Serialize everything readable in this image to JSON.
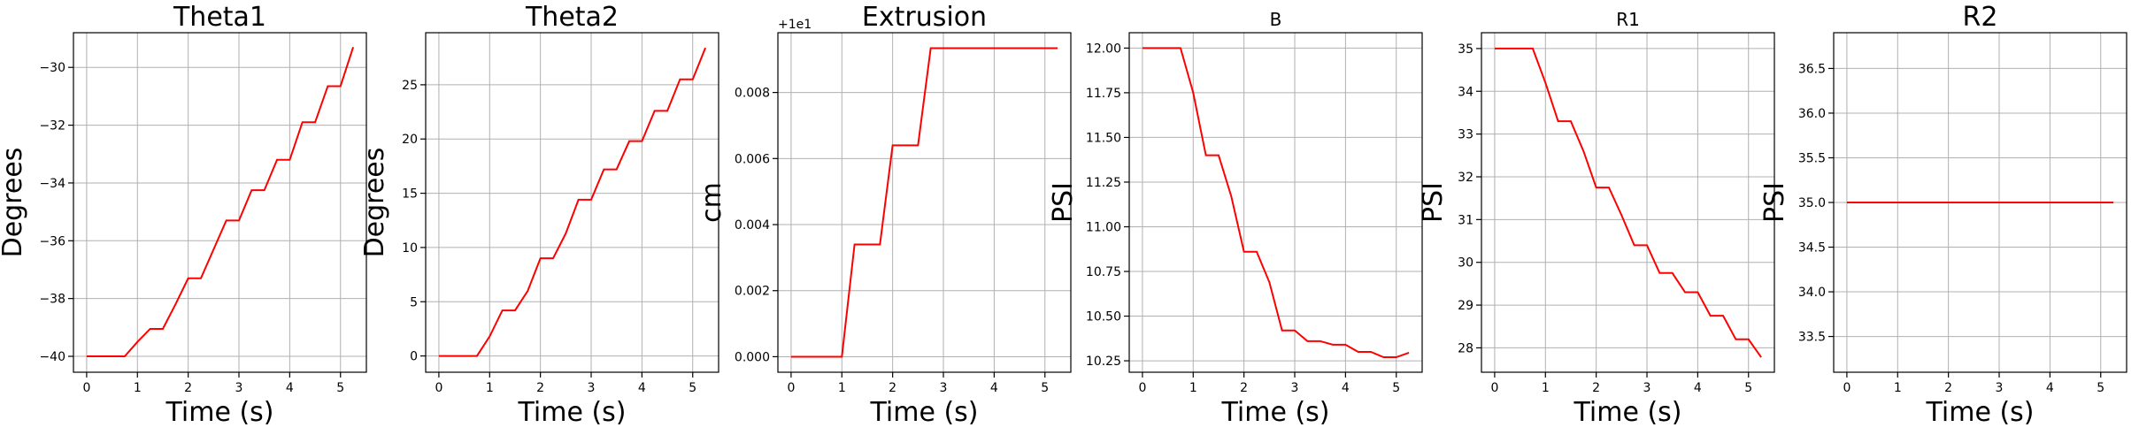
{
  "colors": {
    "line": "#ff0000",
    "grid": "#b0b0b0",
    "frame": "#000000",
    "background": "#ffffff"
  },
  "chart_data": [
    {
      "type": "line",
      "title": "Theta1",
      "xlabel": "Time (s)",
      "ylabel": "Degrees",
      "xlim": [
        -0.26,
        5.51
      ],
      "ylim": [
        -40.55,
        -28.8
      ],
      "xticks": [
        0,
        1,
        2,
        3,
        4,
        5
      ],
      "xtick_labels": [
        "0",
        "1",
        "2",
        "3",
        "4",
        "5"
      ],
      "yticks": [
        -40,
        -38,
        -36,
        -34,
        -32,
        -30
      ],
      "ytick_labels": [
        "−40",
        "−38",
        "−36",
        "−34",
        "−32",
        "−30"
      ],
      "grid": true,
      "x": [
        0,
        0.25,
        0.5,
        0.75,
        1.0,
        1.25,
        1.5,
        1.75,
        2.0,
        2.25,
        2.5,
        2.75,
        3.0,
        3.25,
        3.5,
        3.75,
        4.0,
        4.25,
        4.5,
        4.75,
        5.0,
        5.25
      ],
      "y": [
        -40,
        -40,
        -40,
        -40,
        -39.5,
        -39.05,
        -39.05,
        -38.2,
        -37.3,
        -37.3,
        -36.3,
        -35.3,
        -35.3,
        -34.25,
        -34.25,
        -33.2,
        -33.2,
        -31.9,
        -31.9,
        -30.65,
        -30.65,
        -29.3
      ]
    },
    {
      "type": "line",
      "title": "Theta2",
      "xlabel": "Time (s)",
      "ylabel": "Degrees",
      "xlim": [
        -0.26,
        5.51
      ],
      "ylim": [
        -1.5,
        29.8
      ],
      "xticks": [
        0,
        1,
        2,
        3,
        4,
        5
      ],
      "xtick_labels": [
        "0",
        "1",
        "2",
        "3",
        "4",
        "5"
      ],
      "yticks": [
        0,
        5,
        10,
        15,
        20,
        25
      ],
      "ytick_labels": [
        "0",
        "5",
        "10",
        "15",
        "20",
        "25"
      ],
      "grid": true,
      "x": [
        0,
        0.25,
        0.5,
        0.75,
        1.0,
        1.25,
        1.5,
        1.75,
        2.0,
        2.25,
        2.5,
        2.75,
        3.0,
        3.25,
        3.5,
        3.75,
        4.0,
        4.25,
        4.5,
        4.75,
        5.0,
        5.25
      ],
      "y": [
        0,
        0,
        0,
        0,
        1.8,
        4.2,
        4.2,
        6.0,
        9.0,
        9.0,
        11.3,
        14.4,
        14.4,
        17.2,
        17.2,
        19.8,
        19.8,
        22.6,
        22.6,
        25.5,
        25.5,
        28.4
      ]
    },
    {
      "type": "line",
      "title": "Extrusion",
      "xlabel": "Time (s)",
      "ylabel": "cm",
      "offset_text": "+1e1",
      "xlim": [
        -0.26,
        5.51
      ],
      "ylim": [
        -0.00047,
        0.00981
      ],
      "xticks": [
        0,
        1,
        2,
        3,
        4,
        5
      ],
      "xtick_labels": [
        "0",
        "1",
        "2",
        "3",
        "4",
        "5"
      ],
      "yticks": [
        0,
        0.002,
        0.004,
        0.006,
        0.008
      ],
      "ytick_labels": [
        "0.000",
        "0.002",
        "0.004",
        "0.006",
        "0.008"
      ],
      "grid": true,
      "x": [
        0,
        0.25,
        0.5,
        0.75,
        1.0,
        1.25,
        1.5,
        1.75,
        2.0,
        2.25,
        2.5,
        2.75,
        3.0,
        3.25,
        3.5,
        3.75,
        4.0,
        4.25,
        4.5,
        4.75,
        5.0,
        5.25
      ],
      "y": [
        0,
        0,
        0,
        0,
        0,
        0.0034,
        0.0034,
        0.0034,
        0.0064,
        0.0064,
        0.0064,
        0.00934,
        0.00934,
        0.00934,
        0.00934,
        0.00934,
        0.00934,
        0.00934,
        0.00934,
        0.00934,
        0.00934,
        0.00934
      ]
    },
    {
      "type": "line",
      "title": "B",
      "xlabel": "Time (s)",
      "ylabel": "PSI",
      "xlim": [
        -0.26,
        5.51
      ],
      "ylim": [
        10.186,
        12.086
      ],
      "xticks": [
        0,
        1,
        2,
        3,
        4,
        5
      ],
      "xtick_labels": [
        "0",
        "1",
        "2",
        "3",
        "4",
        "5"
      ],
      "yticks": [
        10.25,
        10.5,
        10.75,
        11.0,
        11.25,
        11.5,
        11.75,
        12.0
      ],
      "ytick_labels": [
        "10.25",
        "10.50",
        "10.75",
        "11.00",
        "11.25",
        "11.50",
        "11.75",
        "12.00"
      ],
      "grid": true,
      "x": [
        0,
        0.25,
        0.5,
        0.75,
        1.0,
        1.25,
        1.5,
        1.75,
        2.0,
        2.25,
        2.5,
        2.75,
        3.0,
        3.25,
        3.5,
        3.75,
        4.0,
        4.25,
        4.5,
        4.75,
        5.0,
        5.25
      ],
      "y": [
        12.0,
        12.0,
        12.0,
        12.0,
        11.75,
        11.4,
        11.4,
        11.17,
        10.86,
        10.86,
        10.69,
        10.42,
        10.42,
        10.36,
        10.36,
        10.34,
        10.34,
        10.3,
        10.3,
        10.27,
        10.27,
        10.295
      ]
    },
    {
      "type": "line",
      "title": "R1",
      "xlabel": "Time (s)",
      "ylabel": "PSI",
      "xlim": [
        -0.26,
        5.51
      ],
      "ylim": [
        27.43,
        35.37
      ],
      "xticks": [
        0,
        1,
        2,
        3,
        4,
        5
      ],
      "xtick_labels": [
        "0",
        "1",
        "2",
        "3",
        "4",
        "5"
      ],
      "yticks": [
        28,
        29,
        30,
        31,
        32,
        33,
        34,
        35
      ],
      "ytick_labels": [
        "28",
        "29",
        "30",
        "31",
        "32",
        "33",
        "34",
        "35"
      ],
      "grid": true,
      "x": [
        0,
        0.25,
        0.5,
        0.75,
        1.0,
        1.25,
        1.5,
        1.75,
        2.0,
        2.25,
        2.5,
        2.75,
        3.0,
        3.25,
        3.5,
        3.75,
        4.0,
        4.25,
        4.5,
        4.75,
        5.0,
        5.25
      ],
      "y": [
        35,
        35,
        35,
        35,
        34.2,
        33.3,
        33.3,
        32.6,
        31.75,
        31.75,
        31.1,
        30.4,
        30.4,
        29.75,
        29.75,
        29.3,
        29.3,
        28.75,
        28.75,
        28.2,
        28.2,
        27.78
      ]
    },
    {
      "type": "line",
      "title": "R2",
      "xlabel": "Time (s)",
      "ylabel": "PSI",
      "xlim": [
        -0.26,
        5.51
      ],
      "ylim": [
        33.1,
        36.9
      ],
      "xticks": [
        0,
        1,
        2,
        3,
        4,
        5
      ],
      "xtick_labels": [
        "0",
        "1",
        "2",
        "3",
        "4",
        "5"
      ],
      "yticks": [
        33.5,
        34.0,
        34.5,
        35.0,
        35.5,
        36.0,
        36.5
      ],
      "ytick_labels": [
        "33.5",
        "34.0",
        "34.5",
        "35.0",
        "35.5",
        "36.0",
        "36.5"
      ],
      "grid": true,
      "x": [
        0,
        0.25,
        0.5,
        0.75,
        1.0,
        1.25,
        1.5,
        1.75,
        2.0,
        2.25,
        2.5,
        2.75,
        3.0,
        3.25,
        3.5,
        3.75,
        4.0,
        4.25,
        4.5,
        4.75,
        5.0,
        5.25
      ],
      "y": [
        35,
        35,
        35,
        35,
        35,
        35,
        35,
        35,
        35,
        35,
        35,
        35,
        35,
        35,
        35,
        35,
        35,
        35,
        35,
        35,
        35,
        35
      ]
    }
  ]
}
